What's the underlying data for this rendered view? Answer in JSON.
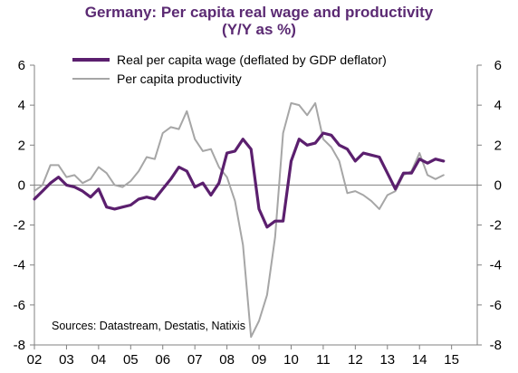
{
  "colors": {
    "wage": "#5b1f6e",
    "productivity": "#a6a6a6",
    "title": "#5b2a73",
    "axis": "#808080"
  },
  "chart_data": {
    "type": "line",
    "title": "Germany: Per capita real wage and productivity",
    "subtitle": "(Y/Y as %)",
    "ylim": [
      -8,
      6
    ],
    "xlim": [
      2002,
      2015.8
    ],
    "yticks_left": [
      "6",
      "4",
      "2",
      "0",
      "-2",
      "-4",
      "-6",
      "-8"
    ],
    "yticks_right": [
      "6",
      "4",
      "2",
      "0",
      "-2",
      "-4",
      "-6",
      "-8"
    ],
    "ytick_values": [
      6,
      4,
      2,
      0,
      -2,
      -4,
      -6,
      -8
    ],
    "xtick_labels": [
      "02",
      "03",
      "04",
      "05",
      "06",
      "07",
      "08",
      "09",
      "10",
      "11",
      "12",
      "13",
      "14",
      "15"
    ],
    "xtick_values": [
      2002,
      2003,
      2004,
      2005,
      2006,
      2007,
      2008,
      2009,
      2010,
      2011,
      2012,
      2013,
      2014,
      2015
    ],
    "legend_placement": "top",
    "source": "Sources: Datastream, Destatis, Natixis",
    "series": [
      {
        "name": "Real per capita wage (deflated by GDP deflator)",
        "x": [
          2002.0,
          2002.25,
          2002.5,
          2002.75,
          2003.0,
          2003.25,
          2003.5,
          2003.75,
          2004.0,
          2004.25,
          2004.5,
          2004.75,
          2005.0,
          2005.25,
          2005.5,
          2005.75,
          2006.0,
          2006.25,
          2006.5,
          2006.75,
          2007.0,
          2007.25,
          2007.5,
          2007.75,
          2008.0,
          2008.25,
          2008.5,
          2008.75,
          2009.0,
          2009.25,
          2009.5,
          2009.75,
          2010.0,
          2010.25,
          2010.5,
          2010.75,
          2011.0,
          2011.25,
          2011.5,
          2011.75,
          2012.0,
          2012.25,
          2012.5,
          2012.75,
          2013.0,
          2013.25,
          2013.5,
          2013.75,
          2014.0,
          2014.25,
          2014.5,
          2014.75
        ],
        "values": [
          -0.7,
          -0.3,
          0.1,
          0.4,
          0.0,
          -0.1,
          -0.3,
          -0.6,
          -0.2,
          -1.1,
          -1.2,
          -1.1,
          -1.0,
          -0.7,
          -0.6,
          -0.7,
          -0.2,
          0.3,
          0.9,
          0.7,
          -0.1,
          0.1,
          -0.5,
          0.1,
          1.6,
          1.7,
          2.3,
          1.8,
          -1.2,
          -2.1,
          -1.8,
          -1.8,
          1.2,
          2.3,
          2.0,
          2.1,
          2.6,
          2.5,
          2.0,
          1.8,
          1.2,
          1.6,
          1.5,
          1.4,
          0.6,
          -0.2,
          0.6,
          0.6,
          1.3,
          1.1,
          1.3,
          1.2
        ]
      },
      {
        "name": "Per capita productivity",
        "x": [
          2002.0,
          2002.25,
          2002.5,
          2002.75,
          2003.0,
          2003.25,
          2003.5,
          2003.75,
          2004.0,
          2004.25,
          2004.5,
          2004.75,
          2005.0,
          2005.25,
          2005.5,
          2005.75,
          2006.0,
          2006.25,
          2006.5,
          2006.75,
          2007.0,
          2007.25,
          2007.5,
          2007.75,
          2008.0,
          2008.25,
          2008.5,
          2008.75,
          2009.0,
          2009.25,
          2009.5,
          2009.75,
          2010.0,
          2010.25,
          2010.5,
          2010.75,
          2011.0,
          2011.25,
          2011.5,
          2011.75,
          2012.0,
          2012.25,
          2012.5,
          2012.75,
          2013.0,
          2013.25,
          2013.5,
          2013.75,
          2014.0,
          2014.25,
          2014.5,
          2014.75
        ],
        "values": [
          -0.3,
          0.0,
          1.0,
          1.0,
          0.4,
          0.5,
          0.1,
          0.3,
          0.9,
          0.6,
          0.0,
          -0.1,
          0.2,
          0.7,
          1.4,
          1.3,
          2.6,
          2.9,
          2.8,
          3.7,
          2.3,
          1.7,
          1.8,
          0.9,
          0.4,
          -0.8,
          -3.0,
          -7.6,
          -6.8,
          -5.5,
          -2.6,
          2.6,
          4.1,
          4.0,
          3.5,
          4.1,
          2.3,
          1.9,
          1.2,
          -0.4,
          -0.3,
          -0.5,
          -0.8,
          -1.2,
          -0.5,
          -0.3,
          0.5,
          0.7,
          1.6,
          0.5,
          0.3,
          0.5
        ]
      }
    ]
  }
}
